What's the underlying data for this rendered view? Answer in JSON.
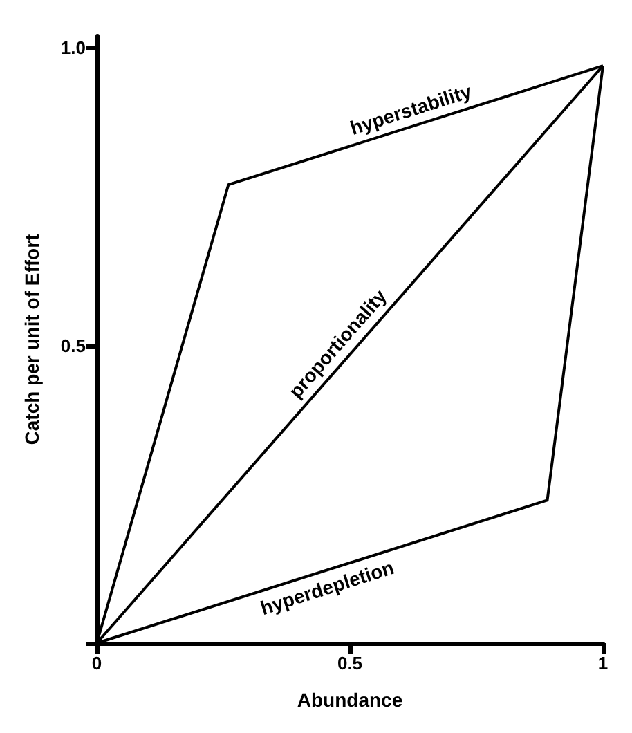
{
  "chart_data": {
    "type": "line",
    "xlabel": "Abundance",
    "ylabel": "Catch per unit of Effort",
    "series": [
      {
        "name": "hyperstability",
        "color": "#000000",
        "x": [
          0,
          0.26,
          1
        ],
        "values": [
          0,
          0.77,
          0.97
        ]
      },
      {
        "name": "proportionality",
        "color": "#000000",
        "x": [
          0,
          1
        ],
        "values": [
          0,
          0.97
        ]
      },
      {
        "name": "hyperdepletion",
        "color": "#000000",
        "x": [
          0,
          0.89,
          1
        ],
        "values": [
          0,
          0.24,
          0.97
        ]
      }
    ],
    "xlim": [
      0,
      1
    ],
    "ylim": [
      0,
      1.02
    ],
    "xticks": [
      0,
      0.5,
      1
    ],
    "yticks": [
      {
        "value": 0,
        "label": null
      },
      0.5,
      {
        "value": 1,
        "label": "1.0"
      }
    ],
    "grid": false,
    "legend": false,
    "marker": "none",
    "line_style": "solid"
  }
}
